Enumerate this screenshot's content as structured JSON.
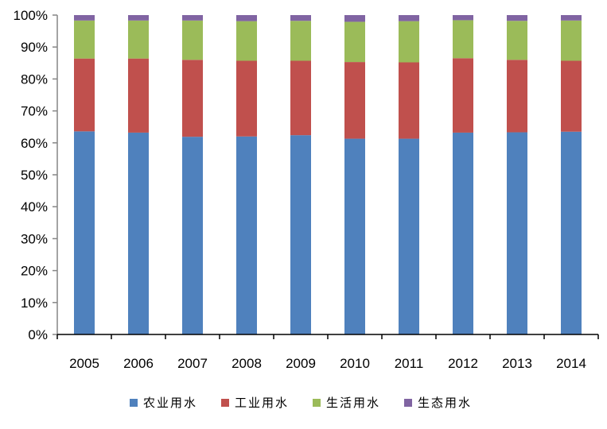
{
  "chart_data": {
    "type": "bar",
    "stacked": true,
    "normalized": true,
    "title": "",
    "xlabel": "",
    "ylabel": "",
    "categories": [
      "2005",
      "2006",
      "2007",
      "2008",
      "2009",
      "2010",
      "2011",
      "2012",
      "2013",
      "2014"
    ],
    "y_ticks": [
      "0%",
      "10%",
      "20%",
      "30%",
      "40%",
      "50%",
      "60%",
      "70%",
      "80%",
      "90%",
      "100%"
    ],
    "ylim": [
      0,
      100
    ],
    "grid": false,
    "legend_position": "bottom",
    "series": [
      {
        "name": "农业用水",
        "color": "#4F81BD",
        "values": [
          63.6,
          63.2,
          61.9,
          62.0,
          62.4,
          61.3,
          61.3,
          63.2,
          63.3,
          63.5
        ]
      },
      {
        "name": "工业用水",
        "color": "#C0504D",
        "values": [
          22.8,
          23.2,
          24.1,
          23.7,
          23.3,
          24.0,
          23.9,
          23.3,
          22.7,
          22.2
        ]
      },
      {
        "name": "生活用水",
        "color": "#9BBB59",
        "values": [
          11.9,
          11.9,
          12.3,
          12.4,
          12.5,
          12.6,
          12.9,
          11.9,
          12.2,
          12.6
        ]
      },
      {
        "name": "生态用水",
        "color": "#8064A2",
        "values": [
          1.7,
          1.7,
          1.7,
          1.9,
          1.8,
          2.1,
          1.9,
          1.6,
          1.8,
          1.7
        ]
      }
    ]
  }
}
